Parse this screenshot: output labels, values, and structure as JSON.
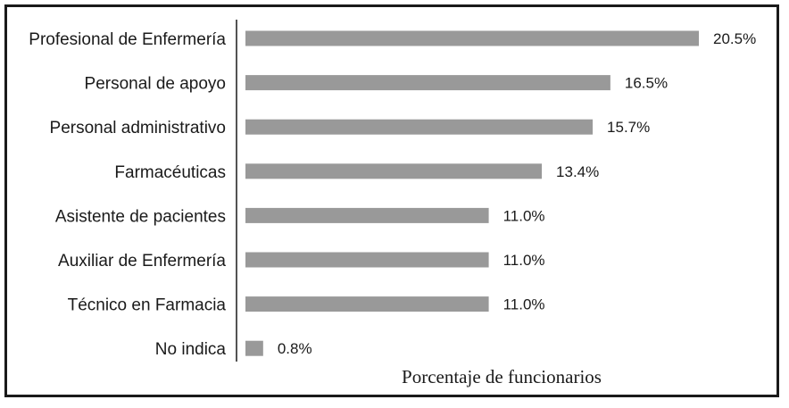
{
  "chart_data": {
    "type": "bar",
    "orientation": "horizontal",
    "categories": [
      "Profesional de Enfermería",
      "Personal de apoyo",
      "Personal administrativo",
      "Farmacéuticas",
      "Asistente de pacientes",
      "Auxiliar de Enfermería",
      "Técnico en Farmacia",
      "No indica"
    ],
    "values": [
      20.5,
      16.5,
      15.7,
      13.4,
      11.0,
      11.0,
      11.0,
      0.8
    ],
    "value_labels": [
      "20.5%",
      "16.5%",
      "15.7%",
      "13.4%",
      "11.0%",
      "11.0%",
      "11.0%",
      "0.8%"
    ],
    "xlabel": "Porcentaje de funcionarios",
    "xlim": [
      0,
      20.5
    ],
    "grid": false,
    "bar_color": "#999999"
  }
}
